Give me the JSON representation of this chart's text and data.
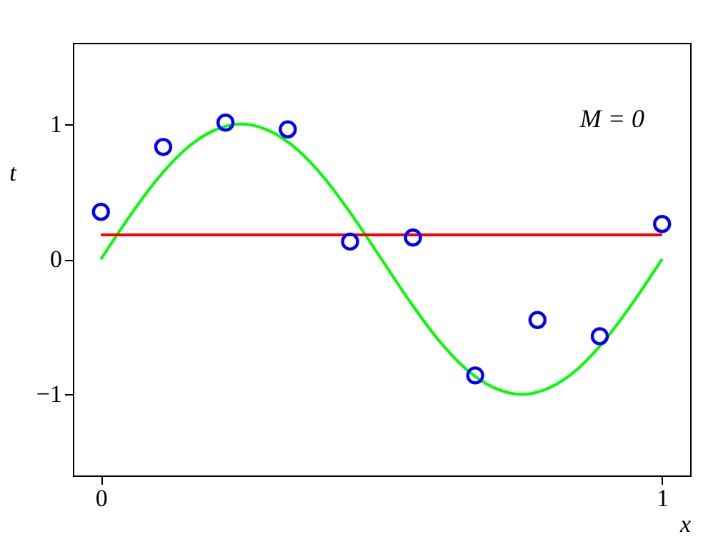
{
  "chart_data": {
    "type": "scatter",
    "xlabel": "x",
    "ylabel": "t",
    "annotations": [
      "M = 0"
    ],
    "xlim": [
      -0.05,
      1.05
    ],
    "ylim": [
      -1.6,
      1.6
    ],
    "xticks": [
      0,
      1
    ],
    "yticks": [
      -1,
      0,
      1
    ],
    "grid": false,
    "series": [
      {
        "type": "line",
        "color": "#00ff00",
        "line_style": "solid",
        "x": [
          0,
          0.05,
          0.1,
          0.15,
          0.2,
          0.25,
          0.3,
          0.35,
          0.4,
          0.45,
          0.5,
          0.55,
          0.6,
          0.65,
          0.7,
          0.75,
          0.8,
          0.85,
          0.9,
          0.95,
          1
        ],
        "values": [
          0,
          0.31,
          0.59,
          0.81,
          0.95,
          1,
          0.95,
          0.81,
          0.59,
          0.31,
          0,
          -0.31,
          -0.59,
          -0.81,
          -0.95,
          -1,
          -0.95,
          -0.81,
          -0.59,
          -0.31,
          0
        ]
      },
      {
        "type": "line",
        "color": "#ff0000",
        "line_style": "solid",
        "x": [
          0,
          1
        ],
        "values": [
          0.18,
          0.18
        ]
      },
      {
        "color": "#0000ff",
        "marker": "circle",
        "x": [
          0,
          0.111,
          0.222,
          0.333,
          0.444,
          0.556,
          0.667,
          0.778,
          0.889,
          1
        ],
        "values": [
          0.35,
          0.83,
          1.01,
          0.96,
          0.13,
          0.16,
          -0.86,
          -0.45,
          -0.57,
          0.26
        ]
      }
    ]
  }
}
